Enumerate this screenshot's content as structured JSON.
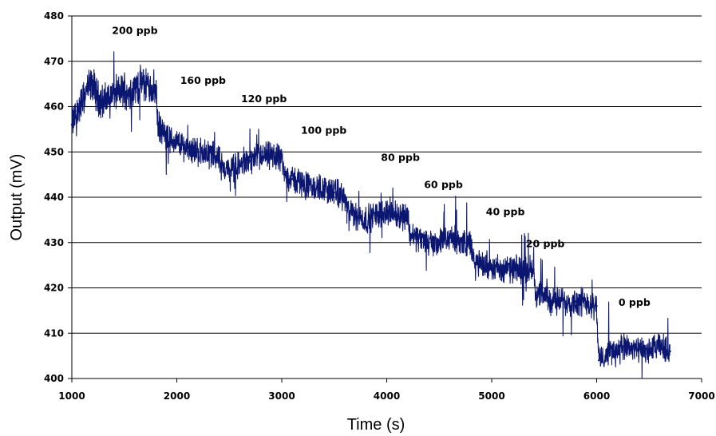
{
  "chart_data": {
    "type": "line",
    "title": "",
    "xlabel": "Time (s)",
    "ylabel": "Output (mV)",
    "xlim": [
      1000,
      7000
    ],
    "ylim": [
      400,
      480
    ],
    "x_ticks": [
      1000,
      2000,
      3000,
      4000,
      5000,
      6000,
      7000
    ],
    "y_ticks": [
      400,
      410,
      420,
      430,
      440,
      450,
      460,
      470,
      480
    ],
    "x_tick_labels": [
      "1000",
      "2000",
      "3000",
      "4000",
      "5000",
      "6000",
      "7000"
    ],
    "y_tick_labels": [
      "400",
      "410",
      "420",
      "430",
      "440",
      "450",
      "460",
      "470",
      "480"
    ],
    "grid": {
      "horizontal": true,
      "vertical": false
    },
    "legend": "none",
    "series_color": "#0b1670",
    "series": [
      {
        "x": [
          1000,
          1050,
          1100,
          1150,
          1200,
          1250,
          1300,
          1350,
          1400,
          1450,
          1500,
          1550,
          1600,
          1650,
          1700,
          1750,
          1800,
          1820,
          1900,
          2000,
          2100,
          2200,
          2300,
          2400,
          2420,
          2500,
          2600,
          2700,
          2800,
          2900,
          3000,
          3020,
          3100,
          3200,
          3300,
          3400,
          3500,
          3600,
          3620,
          3700,
          3800,
          3900,
          4000,
          4100,
          4200,
          4220,
          4300,
          4400,
          4500,
          4600,
          4700,
          4800,
          4820,
          4900,
          5000,
          5100,
          5200,
          5300,
          5400,
          5420,
          5500,
          5600,
          5700,
          5800,
          5900,
          6000,
          6020,
          6050,
          6100,
          6200,
          6300,
          6400,
          6500,
          6600,
          6700
        ],
        "y": [
          456,
          459,
          461,
          464,
          465,
          462,
          461,
          462,
          463,
          463,
          464,
          463,
          464,
          465,
          465,
          464,
          464,
          456,
          453,
          452,
          451,
          450,
          450,
          449,
          447,
          446,
          447,
          448,
          449,
          449,
          449,
          445,
          444,
          443,
          442,
          442,
          441,
          440,
          437,
          436,
          435,
          436,
          437,
          436,
          436,
          432,
          431,
          430,
          430,
          431,
          430,
          430,
          426,
          425,
          425,
          424,
          424,
          424,
          424,
          419,
          418,
          417,
          417,
          417,
          417,
          416,
          404,
          404,
          406,
          406,
          407,
          406,
          406,
          407,
          406
        ]
      }
    ],
    "annotations": [
      {
        "text": "200 ppb",
        "x": 1600,
        "y": 476
      },
      {
        "text": "160 ppb",
        "x": 2250,
        "y": 465
      },
      {
        "text": "120 ppb",
        "x": 2830,
        "y": 461
      },
      {
        "text": "100 ppb",
        "x": 3400,
        "y": 454
      },
      {
        "text": "80 ppb",
        "x": 4130,
        "y": 448
      },
      {
        "text": "60 ppb",
        "x": 4540,
        "y": 442
      },
      {
        "text": "40 ppb",
        "x": 5130,
        "y": 436
      },
      {
        "text": "20 ppb",
        "x": 5510,
        "y": 429
      },
      {
        "text": "0 ppb",
        "x": 6360,
        "y": 416
      }
    ]
  }
}
